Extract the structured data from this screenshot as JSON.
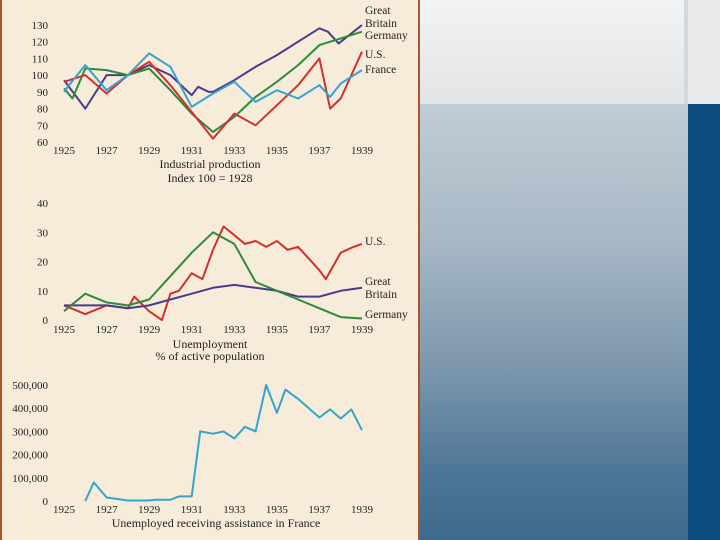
{
  "chart_data": [
    {
      "type": "line",
      "id": "industrial",
      "title": "Industrial production",
      "subtitle": "Index 100 = 1928",
      "xlabel": "",
      "ylabel": "",
      "ylim": [
        60,
        130
      ],
      "yticks": [
        60,
        70,
        80,
        90,
        100,
        110,
        120,
        130
      ],
      "xlim": [
        1925,
        1939
      ],
      "xticks": [
        1925,
        1927,
        1929,
        1931,
        1933,
        1935,
        1937,
        1939
      ],
      "legend": [
        "Great Britain",
        "Germany",
        "U.S.",
        "France"
      ],
      "series": [
        {
          "name": "Great Britain",
          "color": "#4a3a8c",
          "points": [
            [
              1925,
              97
            ],
            [
              1926,
              80
            ],
            [
              1927,
              100
            ],
            [
              1928,
              100
            ],
            [
              1929,
              106
            ],
            [
              1930,
              100
            ],
            [
              1931,
              88
            ],
            [
              1931.3,
              93
            ],
            [
              1931.8,
              90
            ],
            [
              1932,
              90
            ],
            [
              1933,
              97
            ],
            [
              1934,
              105
            ],
            [
              1935,
              112
            ],
            [
              1936,
              120
            ],
            [
              1937,
              128
            ],
            [
              1937.4,
              126
            ],
            [
              1937.9,
              119
            ],
            [
              1938.2,
              122
            ],
            [
              1939,
              130
            ]
          ]
        },
        {
          "name": "Germany",
          "color": "#2e8b3a",
          "points": [
            [
              1925,
              92
            ],
            [
              1925.4,
              86
            ],
            [
              1926,
              104
            ],
            [
              1927,
              103
            ],
            [
              1928,
              100
            ],
            [
              1929,
              104
            ],
            [
              1930,
              91
            ],
            [
              1931,
              77
            ],
            [
              1932,
              66
            ],
            [
              1933,
              75
            ],
            [
              1934,
              87
            ],
            [
              1935,
              96
            ],
            [
              1936,
              106
            ],
            [
              1937,
              118
            ],
            [
              1938,
              122
            ],
            [
              1939,
              126
            ]
          ]
        },
        {
          "name": "U.S.",
          "color": "#d32f2f",
          "points": [
            [
              1925,
              96
            ],
            [
              1926,
              100
            ],
            [
              1927,
              89
            ],
            [
              1928,
              100
            ],
            [
              1929,
              108
            ],
            [
              1930,
              94
            ],
            [
              1931,
              78
            ],
            [
              1932,
              62
            ],
            [
              1933,
              77
            ],
            [
              1934,
              70
            ],
            [
              1935,
              82
            ],
            [
              1936,
              94
            ],
            [
              1937,
              110
            ],
            [
              1937.5,
              80
            ],
            [
              1938,
              86
            ],
            [
              1939,
              114
            ]
          ]
        },
        {
          "name": "France",
          "color": "#35a3d0",
          "points": [
            [
              1925,
              90
            ],
            [
              1925.3,
              95
            ],
            [
              1926,
              106
            ],
            [
              1927,
              91
            ],
            [
              1928,
              100
            ],
            [
              1929,
              113
            ],
            [
              1930,
              105
            ],
            [
              1931,
              81
            ],
            [
              1932,
              89
            ],
            [
              1933,
              96
            ],
            [
              1934,
              84
            ],
            [
              1935,
              91
            ],
            [
              1936,
              86
            ],
            [
              1937,
              94
            ],
            [
              1937.5,
              87
            ],
            [
              1938,
              95
            ],
            [
              1939,
              103
            ]
          ]
        }
      ]
    },
    {
      "type": "line",
      "id": "unemployment",
      "title": "Unemployment",
      "subtitle": "% of active population",
      "xlabel": "",
      "ylabel": "",
      "ylim": [
        0,
        40
      ],
      "yticks": [
        0,
        10,
        20,
        30,
        40
      ],
      "xlim": [
        1925,
        1939
      ],
      "xticks": [
        1925,
        1927,
        1929,
        1931,
        1933,
        1935,
        1937,
        1939
      ],
      "legend": [
        "U.S.",
        "Great Britain",
        "Germany"
      ],
      "series": [
        {
          "name": "U.S.",
          "color": "#d32f2f",
          "points": [
            [
              1925,
              5
            ],
            [
              1926,
              2
            ],
            [
              1927,
              5
            ],
            [
              1928,
              4
            ],
            [
              1928.3,
              8
            ],
            [
              1929,
              3
            ],
            [
              1929.6,
              0
            ],
            [
              1930,
              9
            ],
            [
              1930.4,
              10
            ],
            [
              1931,
              16
            ],
            [
              1931.5,
              14
            ],
            [
              1932,
              24
            ],
            [
              1932.5,
              32
            ],
            [
              1933,
              29
            ],
            [
              1933.5,
              26
            ],
            [
              1934,
              27
            ],
            [
              1934.5,
              25
            ],
            [
              1935,
              27
            ],
            [
              1935.5,
              24
            ],
            [
              1936,
              25
            ],
            [
              1936.5,
              21
            ],
            [
              1937,
              17
            ],
            [
              1937.3,
              14
            ],
            [
              1938,
              23
            ],
            [
              1938.3,
              24
            ],
            [
              1938.6,
              25
            ],
            [
              1939,
              26
            ]
          ]
        },
        {
          "name": "Great Britain",
          "color": "#4a3a8c",
          "points": [
            [
              1925,
              5
            ],
            [
              1926,
              5
            ],
            [
              1927,
              5
            ],
            [
              1928,
              4
            ],
            [
              1929,
              5
            ],
            [
              1930,
              7
            ],
            [
              1931,
              9
            ],
            [
              1932,
              11
            ],
            [
              1933,
              12
            ],
            [
              1934,
              11
            ],
            [
              1935,
              10
            ],
            [
              1936,
              8
            ],
            [
              1937,
              8
            ],
            [
              1938,
              10
            ],
            [
              1939,
              11
            ]
          ]
        },
        {
          "name": "Germany",
          "color": "#2e8b3a",
          "points": [
            [
              1925,
              3
            ],
            [
              1926,
              9
            ],
            [
              1927,
              6
            ],
            [
              1928,
              5
            ],
            [
              1929,
              7
            ],
            [
              1930,
              15
            ],
            [
              1931,
              23
            ],
            [
              1932,
              30
            ],
            [
              1933,
              26
            ],
            [
              1934,
              13
            ],
            [
              1935,
              10
            ],
            [
              1936,
              7
            ],
            [
              1937,
              4
            ],
            [
              1938,
              1
            ],
            [
              1939,
              0.5
            ]
          ]
        }
      ]
    },
    {
      "type": "line",
      "id": "france_assistance",
      "title": "Unemployed receiving assistance in France",
      "xlabel": "",
      "ylabel": "",
      "ylim": [
        0,
        500000
      ],
      "yticks": [
        0,
        100000,
        200000,
        300000,
        400000,
        500000
      ],
      "ytick_labels": [
        "0",
        "100,000",
        "200,000",
        "300,000",
        "400,000",
        "500,000"
      ],
      "xlim": [
        1925,
        1939
      ],
      "xticks": [
        1925,
        1927,
        1929,
        1931,
        1933,
        1935,
        1937,
        1939
      ],
      "legend": [],
      "series": [
        {
          "name": "France",
          "color": "#35a3d0",
          "points": [
            [
              1926,
              0
            ],
            [
              1926.4,
              80000
            ],
            [
              1927,
              15000
            ],
            [
              1928,
              2000
            ],
            [
              1929,
              2000
            ],
            [
              1929.3,
              5000
            ],
            [
              1930,
              5000
            ],
            [
              1930.4,
              20000
            ],
            [
              1931,
              20000
            ],
            [
              1931.4,
              300000
            ],
            [
              1932,
              290000
            ],
            [
              1932.5,
              300000
            ],
            [
              1933,
              270000
            ],
            [
              1933.5,
              320000
            ],
            [
              1934,
              300000
            ],
            [
              1934.5,
              500000
            ],
            [
              1935,
              380000
            ],
            [
              1935.4,
              480000
            ],
            [
              1936,
              440000
            ],
            [
              1937,
              360000
            ],
            [
              1937.5,
              395000
            ],
            [
              1938,
              355000
            ],
            [
              1938.5,
              395000
            ],
            [
              1939,
              305000
            ]
          ]
        }
      ]
    }
  ]
}
